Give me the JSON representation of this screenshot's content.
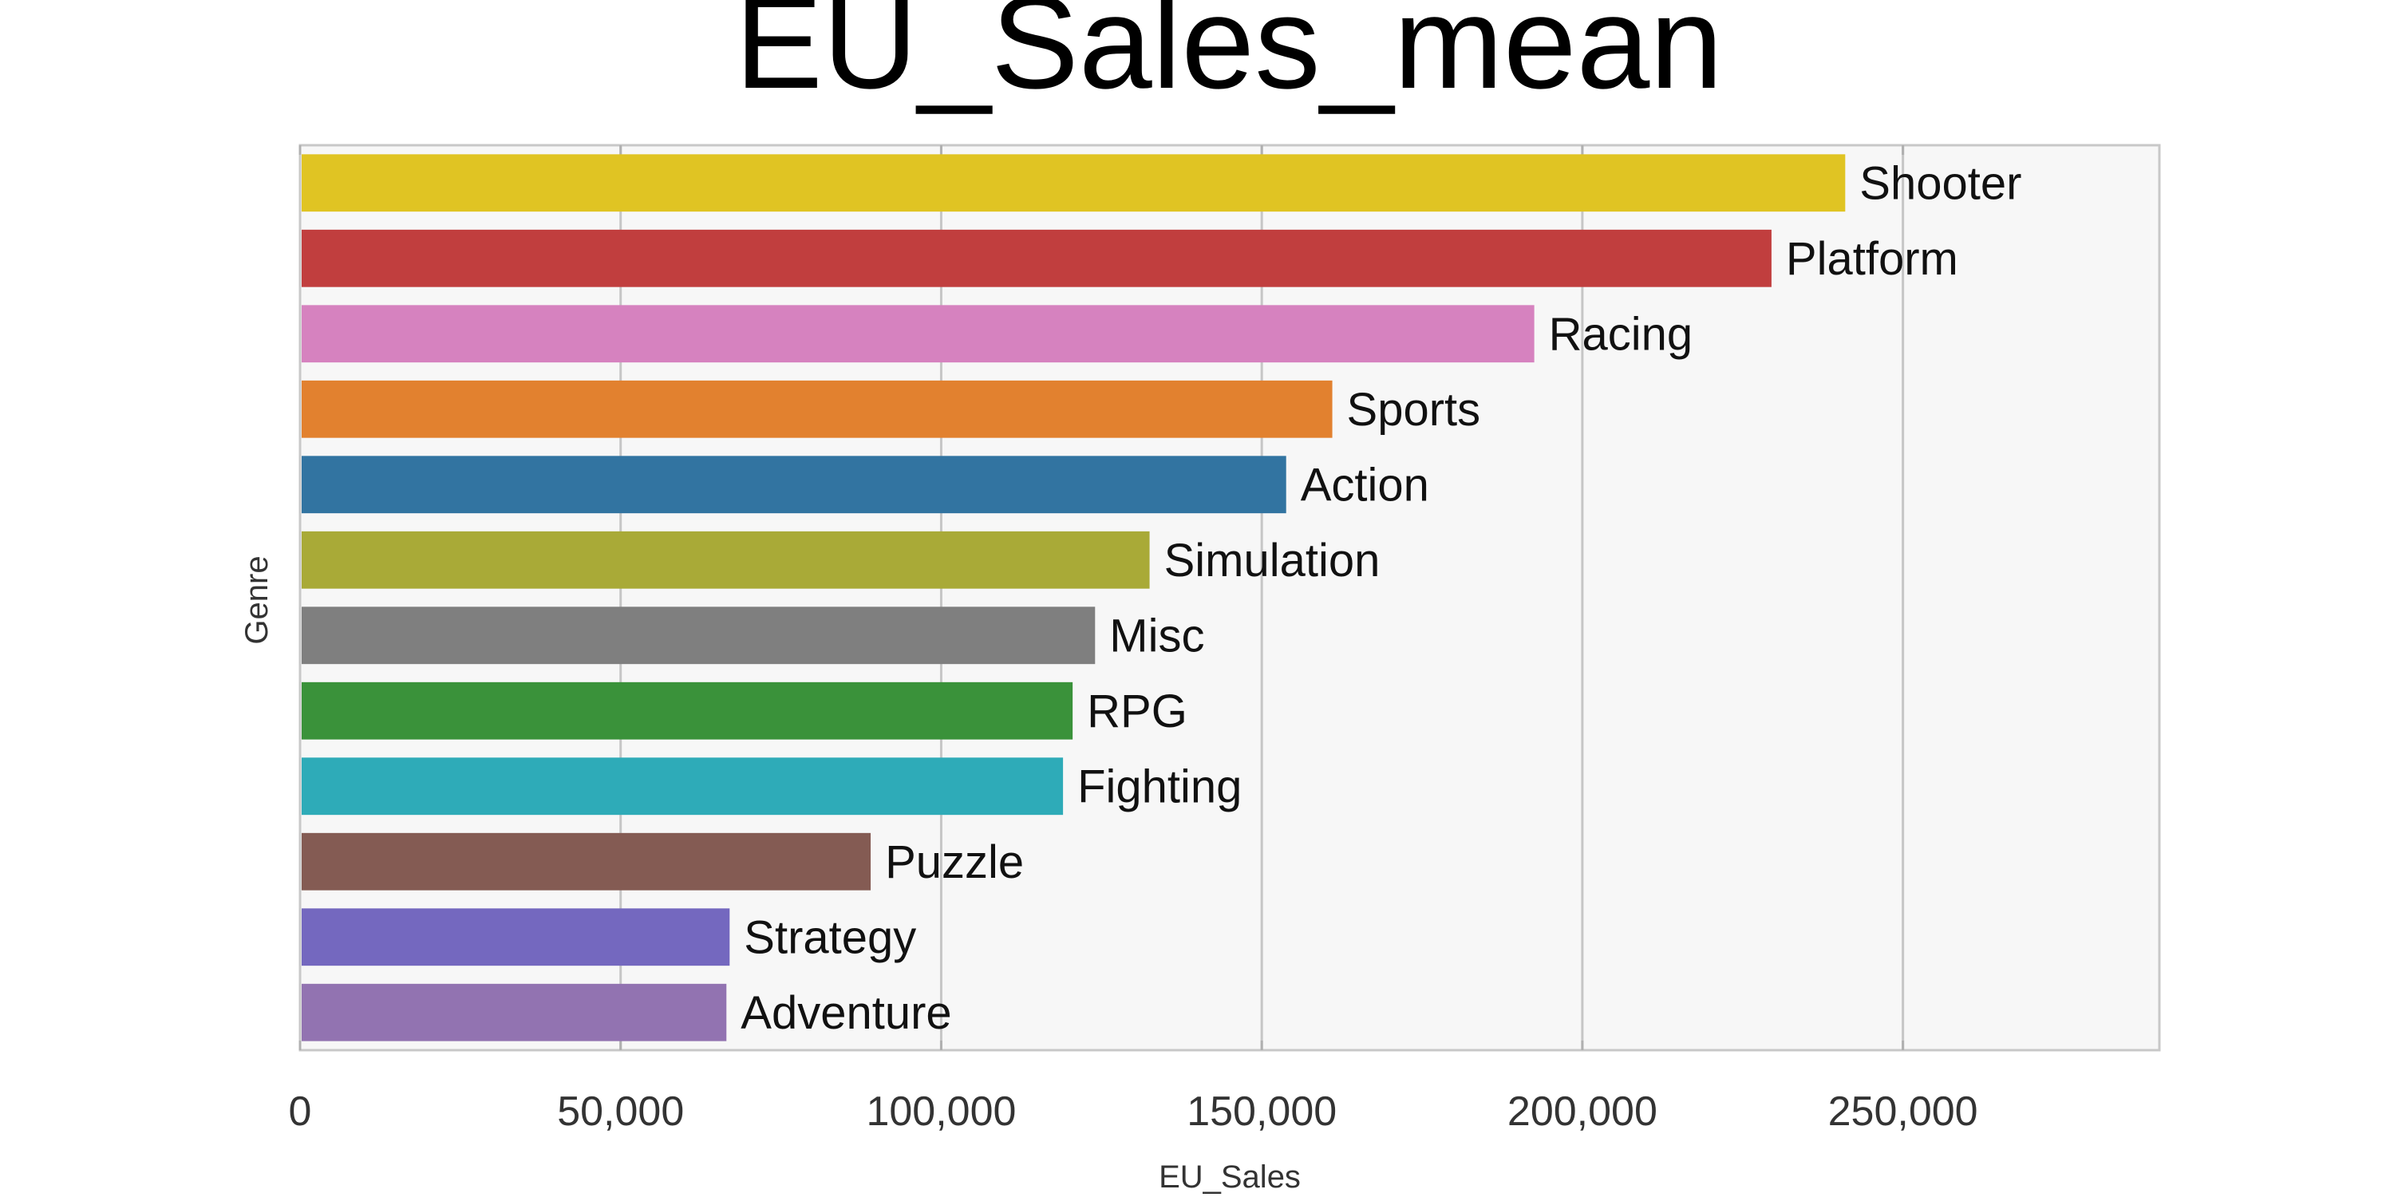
{
  "chart_data": {
    "type": "bar",
    "orientation": "horizontal",
    "title": "EU_Sales_mean",
    "xlabel": "EU_Sales",
    "ylabel": "Genre",
    "xlim": [
      0,
      290000
    ],
    "xticks": [
      0,
      50000,
      100000,
      150000,
      200000,
      250000
    ],
    "xtick_labels": [
      "0",
      "50,000",
      "100,000",
      "150,000",
      "200,000",
      "250,000"
    ],
    "grid": true,
    "categories": [
      "Shooter",
      "Platform",
      "Racing",
      "Sports",
      "Action",
      "Simulation",
      "Misc",
      "RPG",
      "Fighting",
      "Puzzle",
      "Strategy",
      "Adventure"
    ],
    "values": [
      241000,
      229500,
      192500,
      161000,
      153800,
      132500,
      124000,
      120500,
      119000,
      89000,
      67000,
      66500
    ],
    "colors": [
      "#e0c423",
      "#c13e3e",
      "#d682bf",
      "#e2812f",
      "#3274a1",
      "#a9aa37",
      "#7f7f7f",
      "#3a923a",
      "#2eabb8",
      "#845b53",
      "#7468bf",
      "#9273b1"
    ]
  }
}
